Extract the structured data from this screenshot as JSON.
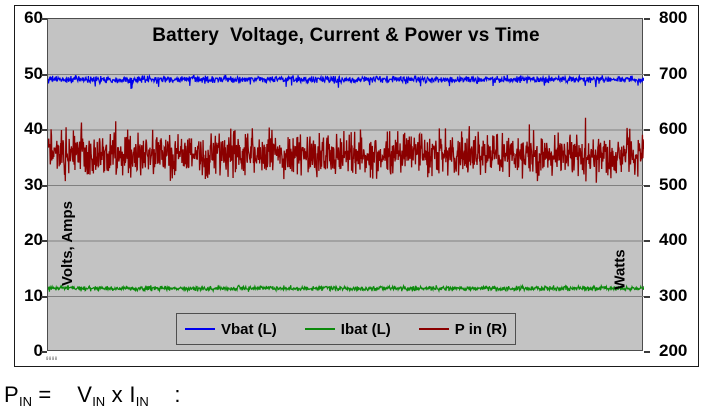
{
  "chart": {
    "title": "Battery  Voltage, Current & Power vs Time",
    "plot_background": "#c3c3c3",
    "gridline_color": "#808080",
    "left_axis": {
      "label": "Volts, Amps",
      "min": 0,
      "max": 60,
      "ticks": [
        60,
        50,
        40,
        30,
        20,
        10,
        0
      ]
    },
    "right_axis": {
      "label": "Watts",
      "min": 200,
      "max": 800,
      "ticks": [
        800,
        700,
        600,
        500,
        400,
        300,
        200
      ]
    },
    "x_axis": {
      "origin_micro_label": "0000"
    },
    "legend": [
      {
        "label": "Vbat (L)",
        "color": "#0000ee"
      },
      {
        "label": "Ibat (L)",
        "color": "#0c8a0c"
      },
      {
        "label": "P in (R)",
        "color": "#8b0000"
      }
    ]
  },
  "chart_data": {
    "type": "line",
    "title": "Battery  Voltage, Current & Power vs Time",
    "xlabel": "",
    "ylabel_left": "Volts, Amps",
    "ylabel_right": "Watts",
    "ylim_left": [
      0,
      60
    ],
    "ylim_right": [
      200,
      800
    ],
    "grid": true,
    "legend_position": "bottom-inside",
    "series": [
      {
        "name": "Vbat (L)",
        "axis": "left",
        "color": "#0000ee",
        "mean": 49.1,
        "noise_amplitude": 0.45,
        "approx_min": 47.4,
        "approx_max": 50.3,
        "points": 1300,
        "spike_direction": "down",
        "spike_probability": 0.025,
        "spike_extra": 1.4
      },
      {
        "name": "Ibat (L)",
        "axis": "left",
        "color": "#0c8a0c",
        "mean": 11.45,
        "noise_amplitude": 0.32,
        "approx_min": 10.7,
        "approx_max": 12.2,
        "points": 1300,
        "spike_direction": "both",
        "spike_probability": 0.02,
        "spike_extra": 0.35
      },
      {
        "name": "P in (R)",
        "axis": "right",
        "color": "#8b0000",
        "mean": 556,
        "noise_amplitude": 27,
        "approx_min": 505,
        "approx_max": 622,
        "points": 1550,
        "spike_direction": "both",
        "spike_probability": 0.03,
        "spike_extra": 38
      }
    ]
  },
  "formula": {
    "segments": [
      {
        "base": "P",
        "sub": "IN"
      },
      {
        "text": " =    "
      },
      {
        "base": "V",
        "sub": "IN"
      },
      {
        "text": " x "
      },
      {
        "base": "I",
        "sub": "IN"
      },
      {
        "text": "    :"
      }
    ]
  }
}
